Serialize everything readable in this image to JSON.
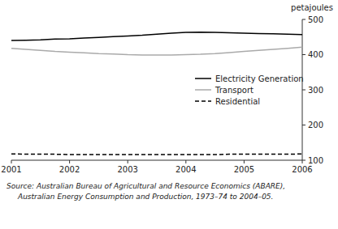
{
  "chart_data": {
    "type": "line",
    "y_label": "petajoules",
    "x": [
      2001,
      2001.25,
      2001.5,
      2001.75,
      2002,
      2002.25,
      2002.5,
      2002.75,
      2003,
      2003.25,
      2003.5,
      2003.75,
      2004,
      2004.25,
      2004.5,
      2004.75,
      2005,
      2005.25,
      2005.5,
      2005.75,
      2006
    ],
    "series": [
      {
        "name": "Electricity Generation",
        "color": "#000000",
        "line_style": "solid",
        "values": [
          440,
          441,
          442,
          444,
          445,
          447,
          449,
          451,
          453,
          455,
          458,
          461,
          463,
          464,
          463,
          462,
          461,
          460,
          459,
          458,
          457
        ]
      },
      {
        "name": "Transport",
        "color": "#aaaaaa",
        "line_style": "solid",
        "values": [
          418,
          415,
          412,
          409,
          407,
          405,
          403,
          402,
          400,
          399,
          399,
          399,
          400,
          401,
          403,
          406,
          409,
          412,
          415,
          418,
          421
        ]
      },
      {
        "name": "Residential",
        "color": "#000000",
        "line_style": "dashed",
        "values": [
          118,
          117,
          117,
          117,
          116,
          116,
          116,
          116,
          116,
          116,
          116,
          116,
          116,
          116,
          116,
          117,
          117,
          117,
          117,
          117,
          118
        ]
      }
    ],
    "xlim": [
      2001,
      2006
    ],
    "xticks": [
      2001,
      2002,
      2003,
      2004,
      2005,
      2006
    ],
    "ylim": [
      100,
      500
    ],
    "yticks": [
      100,
      200,
      300,
      400,
      500
    ],
    "grid": false,
    "legend": "right",
    "annotations": [
      "Source: Australian Bureau of Agricultural and Resource Economics (ABARE),",
      "Australian Energy Consumption and Production, 1973–74 to 2004–05."
    ]
  }
}
